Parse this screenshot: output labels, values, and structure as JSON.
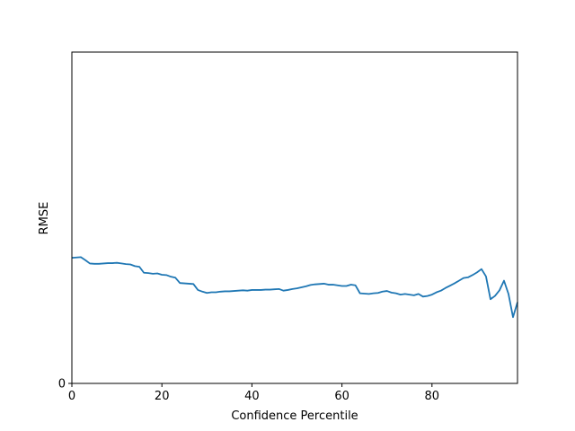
{
  "chart_data": {
    "type": "line",
    "title": "",
    "xlabel": "Confidence Percentile",
    "ylabel": "RMSE",
    "xlim": [
      0,
      99
    ],
    "ylim": [
      0,
      1
    ],
    "xticks": [
      0,
      20,
      40,
      60,
      80
    ],
    "xtick_labels": [
      "0",
      "20",
      "40",
      "60",
      "80"
    ],
    "yticks": [
      0
    ],
    "ytick_labels": [
      "0"
    ],
    "grid": false,
    "legend": "none",
    "series": [
      {
        "color": "#1f77b4",
        "x": [
          0,
          1,
          2,
          3,
          4,
          5,
          6,
          7,
          8,
          9,
          10,
          11,
          12,
          13,
          14,
          15,
          16,
          17,
          18,
          19,
          20,
          21,
          22,
          23,
          24,
          25,
          26,
          27,
          28,
          29,
          30,
          31,
          32,
          33,
          34,
          35,
          36,
          37,
          38,
          39,
          40,
          41,
          42,
          43,
          44,
          45,
          46,
          47,
          48,
          49,
          50,
          51,
          52,
          53,
          54,
          55,
          56,
          57,
          58,
          59,
          60,
          61,
          62,
          63,
          64,
          65,
          66,
          67,
          68,
          69,
          70,
          71,
          72,
          73,
          74,
          75,
          76,
          77,
          78,
          79,
          80,
          81,
          82,
          83,
          84,
          85,
          86,
          87,
          88,
          89,
          90,
          91,
          92,
          93,
          94,
          95,
          96,
          97,
          98,
          99
        ],
        "y": [
          0.379,
          0.38,
          0.381,
          0.372,
          0.362,
          0.361,
          0.361,
          0.362,
          0.363,
          0.363,
          0.364,
          0.362,
          0.36,
          0.359,
          0.354,
          0.352,
          0.334,
          0.333,
          0.331,
          0.332,
          0.328,
          0.327,
          0.322,
          0.319,
          0.303,
          0.302,
          0.301,
          0.3,
          0.282,
          0.277,
          0.273,
          0.275,
          0.275,
          0.277,
          0.278,
          0.278,
          0.279,
          0.28,
          0.281,
          0.28,
          0.282,
          0.282,
          0.282,
          0.283,
          0.283,
          0.284,
          0.285,
          0.28,
          0.282,
          0.285,
          0.287,
          0.29,
          0.293,
          0.297,
          0.299,
          0.3,
          0.301,
          0.298,
          0.298,
          0.296,
          0.294,
          0.294,
          0.298,
          0.296,
          0.272,
          0.271,
          0.27,
          0.272,
          0.273,
          0.277,
          0.279,
          0.274,
          0.272,
          0.268,
          0.27,
          0.268,
          0.266,
          0.27,
          0.262,
          0.264,
          0.268,
          0.275,
          0.28,
          0.288,
          0.295,
          0.302,
          0.31,
          0.318,
          0.32,
          0.327,
          0.335,
          0.345,
          0.323,
          0.254,
          0.264,
          0.281,
          0.31,
          0.27,
          0.2,
          0.245
        ]
      }
    ]
  }
}
